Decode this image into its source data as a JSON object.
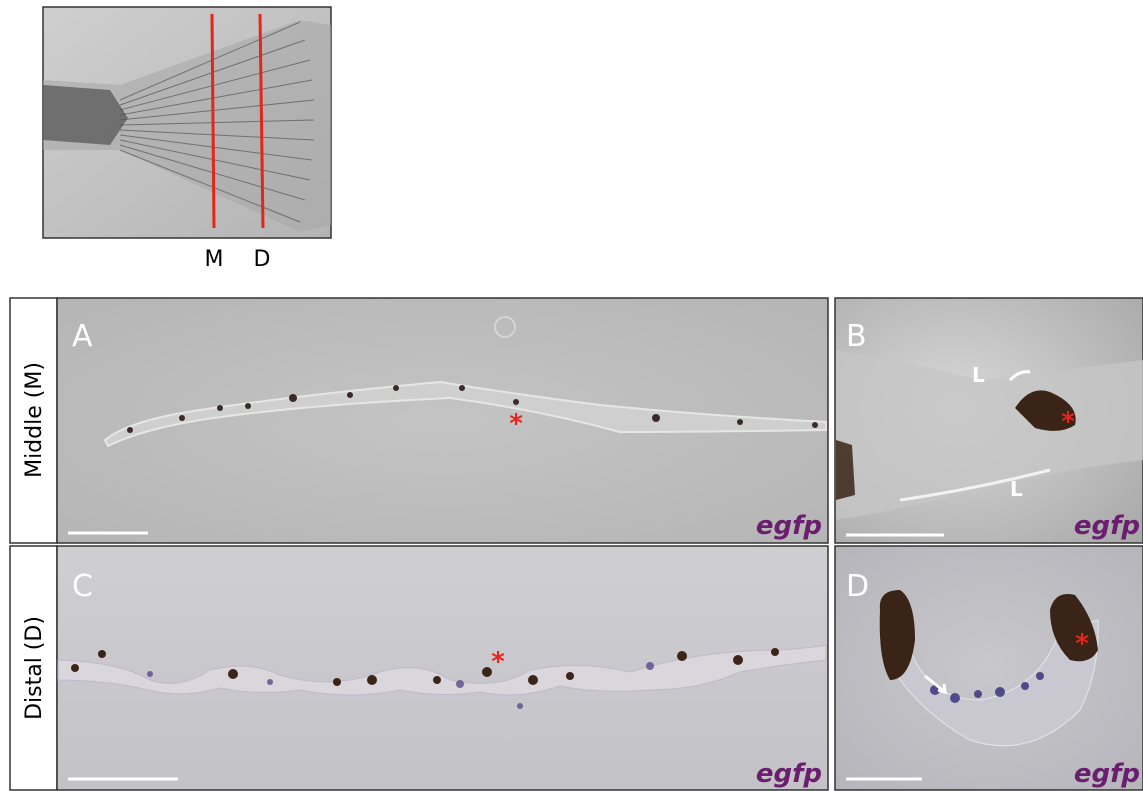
{
  "inset": {
    "labels": [
      "M",
      "D"
    ]
  },
  "rows": [
    {
      "label": "Middle (M)",
      "panels": [
        {
          "letter": "A",
          "stain": "egfp",
          "marker": "*"
        },
        {
          "letter": "B",
          "stain": "egfp",
          "marker": "*",
          "annotations": [
            "L",
            "L"
          ]
        }
      ]
    },
    {
      "label": "Distal (D)",
      "panels": [
        {
          "letter": "C",
          "stain": "egfp",
          "marker": "*"
        },
        {
          "letter": "D",
          "stain": "egfp",
          "marker": "*"
        }
      ]
    }
  ]
}
